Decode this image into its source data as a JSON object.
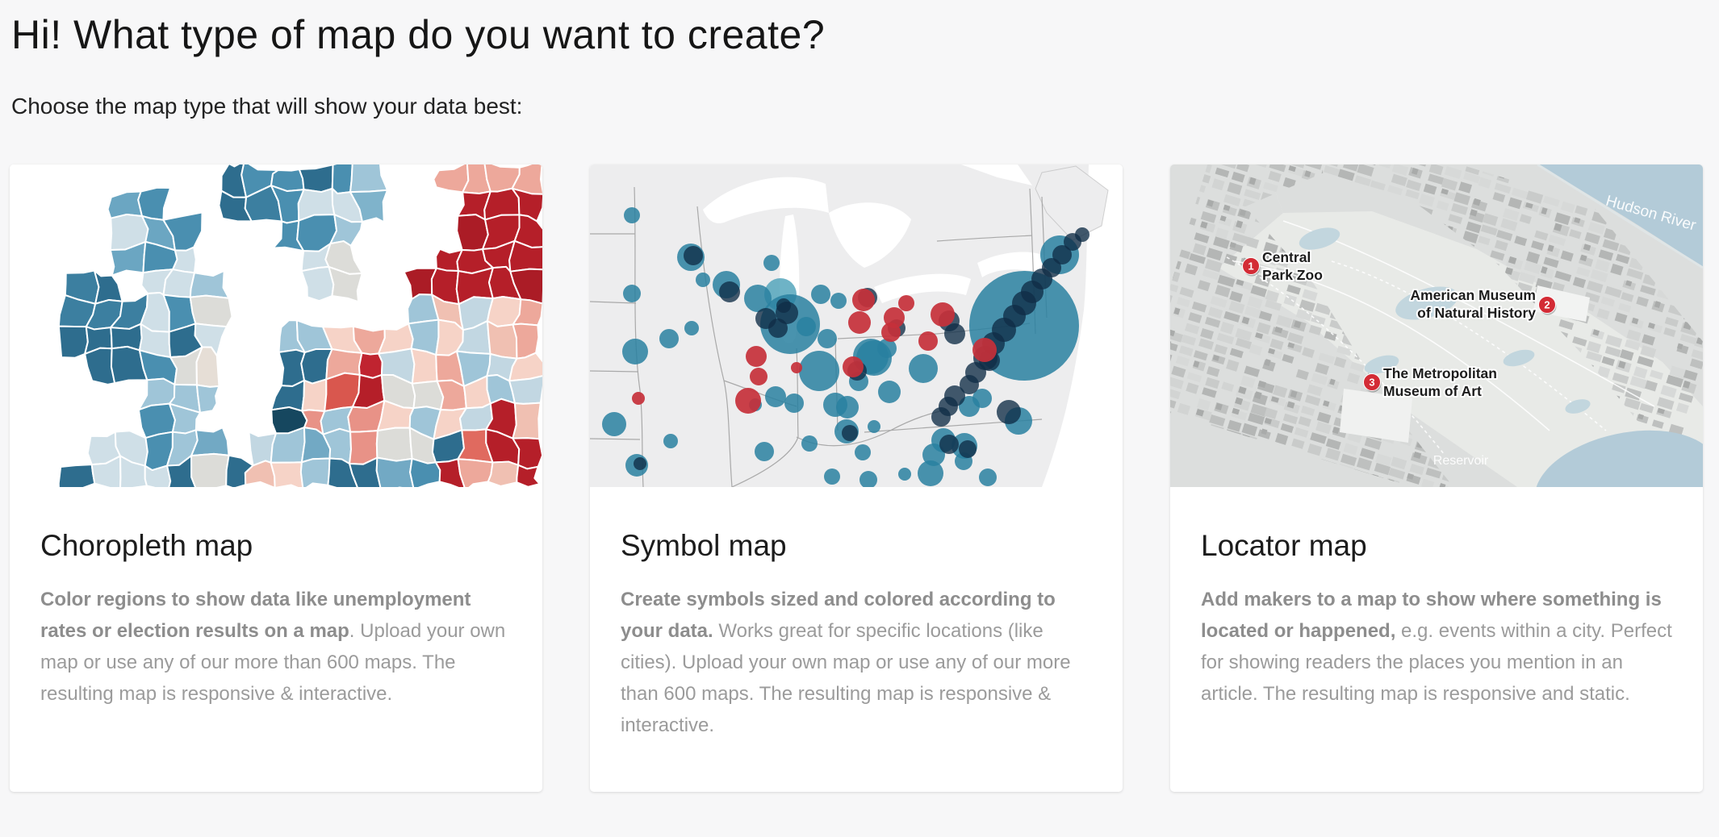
{
  "page": {
    "title": "Hi! What type of map do you want to create?",
    "subtitle": "Choose the map type that will show your data best:"
  },
  "cards": [
    {
      "id": "choropleth",
      "title": "Choropleth map",
      "desc_bold": "Color regions to show data like unemployment rates or election results on a map",
      "desc_rest": ". Upload your own map or use any of our more than 600 maps. The resulting map is responsive & interactive.",
      "preview_icon": "choropleth-europe-map-preview"
    },
    {
      "id": "symbol",
      "title": "Symbol map",
      "desc_bold": "Create symbols sized and colored according to your data.",
      "desc_rest": " Works great for specific locations (like cities). Upload your own map or use any of our more than 600 maps. The resulting map is responsive & interactive.",
      "preview_icon": "symbol-usa-map-preview"
    },
    {
      "id": "locator",
      "title": "Locator map",
      "desc_bold": "Add makers to a map to show where something is located or happened,",
      "desc_rest": " e.g. events within a city. Perfect for showing readers the places you mention in an article. The resulting map is responsive and static.",
      "preview_icon": "locator-nyc-map-preview",
      "locator_labels": {
        "markers": [
          {
            "number": "1",
            "lines": [
              "Central",
              "Park Zoo"
            ]
          },
          {
            "number": "2",
            "lines": [
              "American Museum",
              "of Natural History"
            ]
          },
          {
            "number": "3",
            "lines": [
              "The Metropolitan",
              "Museum of Art"
            ]
          }
        ],
        "water_labels": [
          "Hudson River",
          "Reservoir"
        ]
      }
    }
  ],
  "colors": {
    "choropleth_palette": {
      "dark_blue": "#2e6d8e",
      "medium_blue": "#4a8fb0",
      "light_blue": "#9fc5d8",
      "pale_gray": "#dcdcd8",
      "pale_pink": "#f6d3c7",
      "salmon": "#eda89b",
      "medium_red": "#d9574e",
      "dark_red": "#b51f29"
    },
    "symbol_palette": {
      "teal": "#2980a0",
      "light_teal": "#4aa0b8",
      "navy": "#0f2d47",
      "red": "#c5303a",
      "land": "#ededee",
      "border": "#a9a9a9"
    },
    "locator_palette": {
      "water": "#b3cbd8",
      "park": "#e8eae7",
      "street": "#dcdedd",
      "building": "#c9cbca",
      "marker": "#d32b35",
      "label_text": "#1c1c1c"
    }
  }
}
